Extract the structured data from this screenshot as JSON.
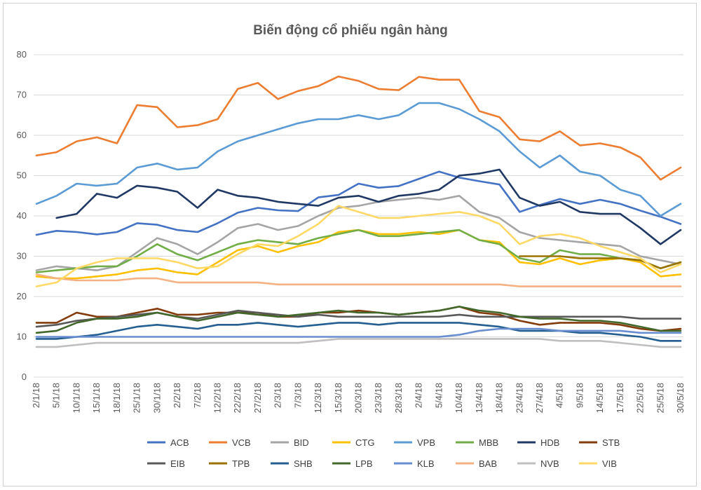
{
  "chart_data": {
    "type": "line",
    "title": "Biến động cổ phiếu ngân hàng",
    "xlabel": "",
    "ylabel": "",
    "ylim": [
      0,
      80
    ],
    "yticks": [
      0,
      10,
      20,
      30,
      40,
      50,
      60,
      70,
      80
    ],
    "grid": true,
    "legend": "bottom",
    "x_tick_labels": [
      "2/1/18",
      "5/1/18",
      "10/1/18",
      "15/1/18",
      "18/1/18",
      "25/1/18",
      "30/1/18",
      "2/2/18",
      "7/2/18",
      "12/2/18",
      "22/2/18",
      "27/2/18",
      "2/3/18",
      "7/3/18",
      "12/3/18",
      "15/3/18",
      "20/3/18",
      "23/3/18",
      "28/3/18",
      "2/4/18",
      "5/4/18",
      "10/4/18",
      "13/4/18",
      "18/4/18",
      "23/4/18",
      "27/4/18",
      "4/5/18",
      "9/5/18",
      "14/5/18",
      "17/5/18",
      "22/5/18",
      "25/5/18",
      "30/5/18"
    ],
    "series": [
      {
        "name": "ACB",
        "color": "#4472c4",
        "values": [
          35.3,
          36.3,
          36.0,
          35.4,
          36.0,
          38.2,
          37.8,
          36.5,
          36.0,
          38.2,
          40.8,
          42.0,
          41.4,
          41.2,
          44.6,
          45.2,
          48.0,
          47.0,
          47.4,
          49.2,
          51.0,
          49.5,
          48.6,
          47.8,
          41.0,
          42.7,
          44.2,
          43.0,
          44.0,
          43.0,
          41.3,
          39.8,
          38.0
        ]
      },
      {
        "name": "VCB",
        "color": "#ed7d31",
        "values": [
          55.0,
          55.8,
          58.5,
          59.5,
          58.0,
          67.5,
          67.0,
          62.0,
          62.5,
          64.0,
          71.5,
          73.0,
          69.0,
          71.0,
          72.2,
          74.6,
          73.5,
          71.5,
          71.2,
          74.5,
          73.8,
          73.8,
          66.0,
          64.5,
          59.0,
          58.5,
          61.0,
          57.5,
          58.0,
          57.0,
          54.5,
          49.0,
          52.0
        ]
      },
      {
        "name": "BID",
        "color": "#a5a5a5",
        "values": [
          26.5,
          27.5,
          27.0,
          26.5,
          27.5,
          31.0,
          34.5,
          33.0,
          30.5,
          33.5,
          37.0,
          38.0,
          36.5,
          37.5,
          40.0,
          42.0,
          42.5,
          43.5,
          44.0,
          44.5,
          44.0,
          45.0,
          41.0,
          39.5,
          36.0,
          34.5,
          34.0,
          33.5,
          33.0,
          32.5,
          30.0,
          29.0,
          28.0
        ]
      },
      {
        "name": "CTG",
        "color": "#ffc000",
        "values": [
          25.0,
          24.5,
          24.5,
          25.0,
          25.5,
          26.5,
          27.0,
          26.0,
          25.5,
          28.5,
          31.5,
          32.5,
          31.0,
          32.5,
          33.5,
          36.0,
          36.5,
          35.5,
          35.5,
          36.0,
          35.5,
          36.5,
          34.0,
          33.5,
          28.5,
          28.0,
          29.5,
          28.0,
          29.0,
          29.5,
          28.5,
          25.0,
          25.5
        ]
      },
      {
        "name": "VPB",
        "color": "#5b9bd5",
        "values": [
          43.0,
          45.0,
          48.0,
          47.5,
          48.0,
          52.0,
          53.0,
          51.5,
          52.0,
          56.0,
          58.5,
          60.0,
          61.5,
          63.0,
          64.0,
          64.0,
          65.0,
          64.0,
          65.0,
          68.0,
          68.0,
          66.5,
          64.0,
          61.0,
          56.0,
          52.0,
          55.0,
          51.0,
          50.0,
          46.5,
          45.0,
          40.0,
          43.0
        ]
      },
      {
        "name": "MBB",
        "color": "#70ad47",
        "values": [
          26.0,
          26.5,
          27.0,
          27.5,
          27.5,
          30.0,
          33.0,
          30.5,
          29.0,
          31.0,
          33.0,
          34.0,
          33.5,
          33.0,
          34.5,
          35.5,
          36.5,
          35.0,
          35.0,
          35.5,
          36.0,
          36.5,
          34.0,
          33.0,
          29.5,
          28.5,
          31.5,
          30.5,
          30.5,
          29.5,
          29.0,
          27.0,
          28.5
        ]
      },
      {
        "name": "HDB",
        "color": "#1f3864",
        "values": [
          null,
          39.5,
          40.5,
          45.5,
          44.5,
          47.5,
          47.0,
          46.0,
          42.0,
          46.5,
          45.0,
          44.5,
          43.5,
          43.0,
          42.5,
          44.5,
          45.0,
          43.5,
          45.0,
          45.5,
          46.5,
          50.0,
          50.5,
          51.5,
          44.5,
          42.5,
          43.5,
          41.0,
          40.5,
          40.5,
          37.0,
          33.0,
          36.5
        ]
      },
      {
        "name": "STB",
        "color": "#843c0c",
        "values": [
          13.5,
          13.5,
          16.0,
          15.0,
          15.0,
          16.0,
          17.0,
          15.5,
          15.5,
          16.0,
          16.0,
          16.0,
          15.0,
          15.0,
          16.0,
          16.0,
          16.5,
          16.0,
          15.5,
          16.0,
          16.5,
          17.5,
          16.0,
          15.5,
          14.0,
          13.0,
          13.5,
          13.5,
          13.5,
          13.0,
          12.0,
          11.5,
          12.0
        ]
      },
      {
        "name": "EIB",
        "color": "#595959",
        "values": [
          12.5,
          13.0,
          14.0,
          14.5,
          15.0,
          15.5,
          16.0,
          15.0,
          14.5,
          15.5,
          16.5,
          16.0,
          15.5,
          15.0,
          15.5,
          15.0,
          15.0,
          15.0,
          15.0,
          15.0,
          15.0,
          15.5,
          15.0,
          15.0,
          15.0,
          15.0,
          15.0,
          15.0,
          15.0,
          15.0,
          14.5,
          14.5,
          14.5
        ]
      },
      {
        "name": "TPB",
        "color": "#997300",
        "values": [
          null,
          null,
          null,
          null,
          null,
          null,
          null,
          null,
          null,
          null,
          null,
          null,
          null,
          null,
          null,
          null,
          null,
          null,
          null,
          null,
          null,
          null,
          null,
          null,
          30.0,
          30.0,
          30.0,
          29.5,
          29.5,
          29.5,
          29.0,
          27.0,
          28.5
        ]
      },
      {
        "name": "SHB",
        "color": "#255e91",
        "values": [
          9.5,
          9.5,
          10.0,
          10.5,
          11.5,
          12.5,
          13.0,
          12.5,
          12.0,
          13.0,
          13.0,
          13.5,
          13.0,
          12.5,
          13.0,
          13.5,
          13.5,
          13.0,
          13.5,
          13.5,
          13.5,
          13.5,
          13.0,
          12.5,
          11.5,
          11.5,
          11.5,
          11.0,
          11.0,
          10.5,
          10.0,
          9.0,
          9.0
        ]
      },
      {
        "name": "LPB",
        "color": "#43682b",
        "values": [
          11.0,
          11.5,
          13.5,
          14.5,
          14.5,
          15.0,
          16.0,
          15.0,
          14.0,
          15.0,
          16.0,
          15.5,
          15.0,
          15.5,
          16.0,
          16.5,
          16.0,
          16.0,
          15.5,
          16.0,
          16.5,
          17.5,
          16.5,
          16.0,
          15.0,
          14.5,
          14.5,
          14.0,
          14.0,
          13.5,
          12.5,
          11.5,
          11.5
        ]
      },
      {
        "name": "KLB",
        "color": "#698ed0",
        "values": [
          10.0,
          10.0,
          10.0,
          10.0,
          10.0,
          10.0,
          10.0,
          10.0,
          10.0,
          10.0,
          10.0,
          10.0,
          10.0,
          10.0,
          10.0,
          10.0,
          10.0,
          10.0,
          10.0,
          10.0,
          10.0,
          10.5,
          11.5,
          12.0,
          12.0,
          12.0,
          11.5,
          11.5,
          11.5,
          11.5,
          11.0,
          11.0,
          11.0
        ]
      },
      {
        "name": "BAB",
        "color": "#f4b183",
        "values": [
          25.5,
          24.5,
          24.0,
          24.0,
          24.0,
          24.5,
          24.5,
          23.5,
          23.5,
          23.5,
          23.5,
          23.5,
          23.0,
          23.0,
          23.0,
          23.0,
          23.0,
          23.0,
          23.0,
          23.0,
          23.0,
          23.0,
          23.0,
          23.0,
          22.5,
          22.5,
          22.5,
          22.5,
          22.5,
          22.5,
          22.5,
          22.5,
          22.5
        ]
      },
      {
        "name": "NVB",
        "color": "#bfbfbf",
        "values": [
          7.5,
          7.5,
          8.0,
          8.5,
          8.5,
          8.5,
          8.5,
          8.5,
          8.5,
          8.5,
          8.5,
          8.5,
          8.5,
          8.5,
          9.0,
          9.5,
          9.5,
          9.5,
          9.5,
          9.5,
          9.5,
          9.5,
          9.5,
          9.5,
          9.5,
          9.5,
          9.0,
          9.0,
          9.0,
          8.5,
          8.0,
          7.5,
          7.5
        ]
      },
      {
        "name": "VIB",
        "color": "#ffd966",
        "values": [
          22.5,
          23.5,
          27.0,
          28.5,
          29.5,
          29.5,
          29.5,
          28.5,
          27.0,
          27.5,
          30.5,
          33.0,
          32.5,
          35.0,
          38.0,
          42.5,
          41.0,
          39.5,
          39.5,
          40.0,
          40.5,
          41.0,
          40.0,
          38.0,
          33.0,
          35.0,
          35.5,
          34.5,
          32.5,
          31.0,
          29.5,
          26.0,
          28.0
        ]
      }
    ]
  }
}
